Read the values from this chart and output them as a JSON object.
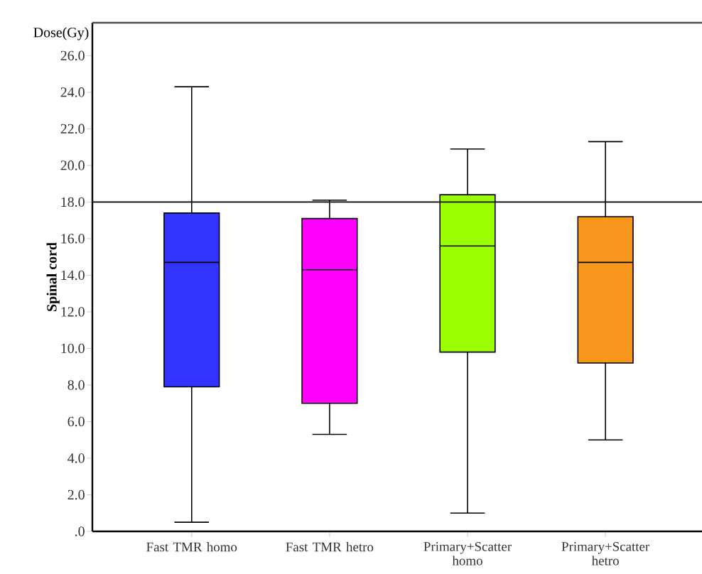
{
  "chart_data": {
    "type": "box",
    "ylabel": "Spinal cord",
    "annotations": [
      "Dose(Gy)"
    ],
    "categories": [
      "Fast TMR homo",
      "Fast TMR hetro",
      "Primary+Scatter homo",
      "Primary+Scatter hetro"
    ],
    "colors": [
      "#3333ff",
      "#ff00ff",
      "#99ff00",
      "#f7971e"
    ],
    "boxes": [
      {
        "low": 0.5,
        "q1": 7.9,
        "median": 14.7,
        "q3": 17.4,
        "high": 24.3
      },
      {
        "low": 5.3,
        "q1": 7.0,
        "median": 14.3,
        "q3": 17.1,
        "high": 18.1
      },
      {
        "low": 1.0,
        "q1": 9.8,
        "median": 15.6,
        "q3": 18.4,
        "high": 20.9
      },
      {
        "low": 5.0,
        "q1": 9.2,
        "median": 14.7,
        "q3": 17.2,
        "high": 21.3
      }
    ],
    "ylim": [
      0,
      27.8
    ],
    "yticks": [
      {
        "value": 0,
        "label": ".0"
      },
      {
        "value": 2,
        "label": "2.0"
      },
      {
        "value": 4,
        "label": "4.0"
      },
      {
        "value": 6,
        "label": "6.0"
      },
      {
        "value": 8,
        "label": "8.0"
      },
      {
        "value": 10,
        "label": "10.0"
      },
      {
        "value": 12,
        "label": "12.0"
      },
      {
        "value": 14,
        "label": "14.0"
      },
      {
        "value": 16,
        "label": "16.0"
      },
      {
        "value": 18,
        "label": "18.0"
      },
      {
        "value": 20,
        "label": "20.0"
      },
      {
        "value": 22,
        "label": "22.0"
      },
      {
        "value": 24,
        "label": "24.0"
      },
      {
        "value": 26,
        "label": "26.0"
      }
    ],
    "ref_lines": [
      {
        "axis": "y",
        "value": 18,
        "color": "#000000"
      }
    ]
  }
}
